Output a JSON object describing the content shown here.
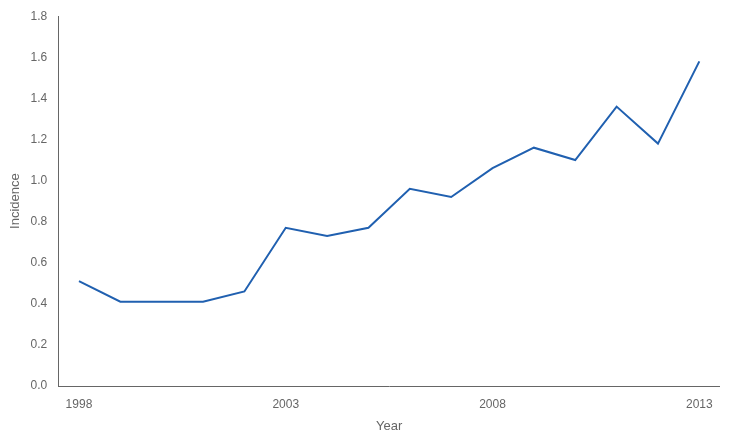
{
  "chart_data": {
    "type": "line",
    "x": [
      1998,
      1999,
      2000,
      2001,
      2002,
      2003,
      2004,
      2005,
      2006,
      2007,
      2008,
      2009,
      2010,
      2011,
      2012,
      2013
    ],
    "values": [
      0.51,
      0.41,
      0.41,
      0.41,
      0.46,
      0.77,
      0.73,
      0.77,
      0.96,
      0.92,
      1.06,
      1.16,
      1.1,
      1.36,
      1.18,
      1.58
    ],
    "color": "#2060b0",
    "xlabel": "Year",
    "ylabel": "Incidence",
    "xlim": [
      1997.5,
      2013.5
    ],
    "xticks": [
      1998,
      2003,
      2008,
      2013
    ],
    "ylim": [
      0.0,
      1.8
    ],
    "yticks": [
      {
        "value": 0,
        "label": "0.0"
      },
      0.2,
      0.4,
      0.6,
      0.8,
      {
        "value": 1,
        "label": "1.0"
      },
      1.2,
      1.4,
      1.6,
      1.8
    ],
    "grid": false
  }
}
